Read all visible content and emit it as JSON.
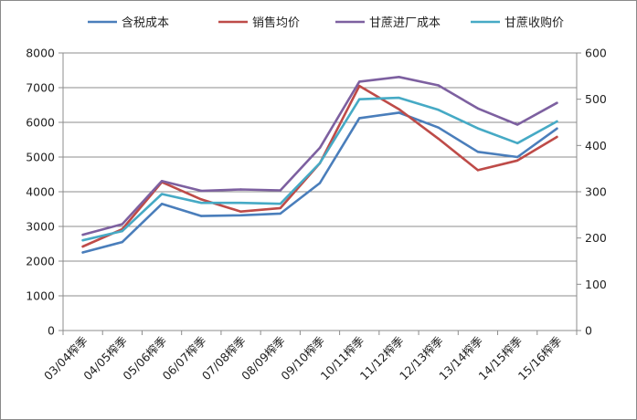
{
  "chart_data": {
    "type": "line",
    "categories": [
      "03/04榨季",
      "04/05榨季",
      "05/06榨季",
      "06/07榨季",
      "07/08榨季",
      "08/09榨季",
      "09/10榨季",
      "10/11榨季",
      "11/12榨季",
      "12/13榨季",
      "13/14榨季",
      "14/15榨季",
      "15/16榨季"
    ],
    "series": [
      {
        "name": "含税成本",
        "color": "#4a7ebb",
        "axis": "left",
        "values": [
          2250,
          2550,
          3650,
          3300,
          3320,
          3370,
          4250,
          6120,
          6280,
          5850,
          5150,
          5000,
          5820
        ]
      },
      {
        "name": "销售均价",
        "color": "#be4b48",
        "axis": "left",
        "values": [
          2420,
          2920,
          4280,
          3780,
          3430,
          3530,
          4820,
          7050,
          6380,
          5530,
          4620,
          4900,
          5580
        ]
      },
      {
        "name": "甘蔗进厂成本",
        "color": "#7d60a0",
        "axis": "right",
        "values": [
          207,
          230,
          323,
          302,
          305,
          303,
          395,
          538,
          548,
          530,
          480,
          445,
          492
        ]
      },
      {
        "name": "甘蔗收购价",
        "color": "#46aac5",
        "axis": "right",
        "values": [
          195,
          215,
          295,
          276,
          276,
          274,
          362,
          500,
          503,
          477,
          437,
          405,
          452
        ]
      }
    ],
    "yLeft": {
      "min": 0,
      "max": 8000,
      "step": 1000,
      "ticks": [
        "0",
        "1000",
        "2000",
        "3000",
        "4000",
        "5000",
        "6000",
        "7000",
        "8000"
      ]
    },
    "yRight": {
      "min": 0,
      "max": 600,
      "step": 100,
      "ticks": [
        "0",
        "100",
        "200",
        "300",
        "400",
        "500",
        "600"
      ]
    },
    "grid": true,
    "legend": "top"
  }
}
